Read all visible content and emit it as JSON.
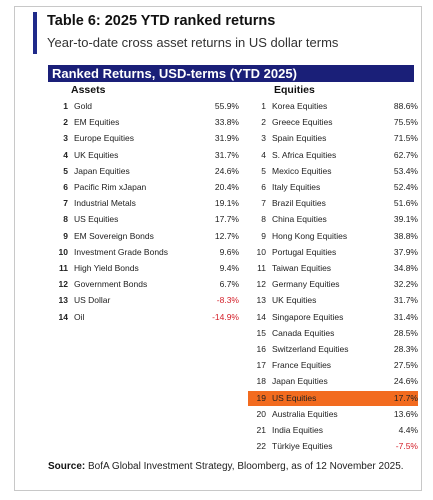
{
  "title": "Table 6: 2025 YTD ranked returns",
  "subtitle": "Year-to-date cross asset returns in US dollar terms",
  "banner": "Ranked Returns, USD-terms (YTD 2025)",
  "assets_header": "Assets",
  "equities_header": "Equities",
  "assets": [
    {
      "rank": "1",
      "name": "Gold",
      "value": "55.9%"
    },
    {
      "rank": "2",
      "name": "EM Equities",
      "value": "33.8%"
    },
    {
      "rank": "3",
      "name": "Europe Equities",
      "value": "31.9%"
    },
    {
      "rank": "4",
      "name": "UK Equities",
      "value": "31.7%"
    },
    {
      "rank": "5",
      "name": "Japan Equities",
      "value": "24.6%"
    },
    {
      "rank": "6",
      "name": "Pacific Rim xJapan",
      "value": "20.4%"
    },
    {
      "rank": "7",
      "name": "Industrial Metals",
      "value": "19.1%"
    },
    {
      "rank": "8",
      "name": "US Equities",
      "value": "17.7%"
    },
    {
      "rank": "9",
      "name": "EM Sovereign Bonds",
      "value": "12.7%"
    },
    {
      "rank": "10",
      "name": "Investment Grade Bonds",
      "value": "9.6%"
    },
    {
      "rank": "11",
      "name": "High Yield Bonds",
      "value": "9.4%"
    },
    {
      "rank": "12",
      "name": "Government Bonds",
      "value": "6.7%"
    },
    {
      "rank": "13",
      "name": "US Dollar",
      "value": "-8.3%"
    },
    {
      "rank": "14",
      "name": "Oil",
      "value": "-14.9%"
    }
  ],
  "equities": [
    {
      "rank": "1",
      "name": "Korea Equities",
      "value": "88.6%"
    },
    {
      "rank": "2",
      "name": "Greece Equities",
      "value": "75.5%"
    },
    {
      "rank": "3",
      "name": "Spain Equities",
      "value": "71.5%"
    },
    {
      "rank": "4",
      "name": "S. Africa Equities",
      "value": "62.7%"
    },
    {
      "rank": "5",
      "name": "Mexico Equities",
      "value": "53.4%"
    },
    {
      "rank": "6",
      "name": "Italy Equities",
      "value": "52.4%"
    },
    {
      "rank": "7",
      "name": "Brazil Equities",
      "value": "51.6%"
    },
    {
      "rank": "8",
      "name": "China Equities",
      "value": "39.1%"
    },
    {
      "rank": "9",
      "name": "Hong Kong Equities",
      "value": "38.8%"
    },
    {
      "rank": "10",
      "name": "Portugal Equities",
      "value": "37.9%"
    },
    {
      "rank": "11",
      "name": "Taiwan Equities",
      "value": "34.8%"
    },
    {
      "rank": "12",
      "name": "Germany Equities",
      "value": "32.2%"
    },
    {
      "rank": "13",
      "name": "UK Equities",
      "value": "31.7%"
    },
    {
      "rank": "14",
      "name": "Singapore Equities",
      "value": "31.4%"
    },
    {
      "rank": "15",
      "name": "Canada Equities",
      "value": "28.5%"
    },
    {
      "rank": "16",
      "name": "Switzerland Equities",
      "value": "28.3%"
    },
    {
      "rank": "17",
      "name": "France Equities",
      "value": "27.5%"
    },
    {
      "rank": "18",
      "name": "Japan Equities",
      "value": "24.6%"
    },
    {
      "rank": "19",
      "name": "US Equities",
      "value": "17.7%",
      "highlight": true
    },
    {
      "rank": "20",
      "name": "Australia Equities",
      "value": "13.6%"
    },
    {
      "rank": "21",
      "name": "India Equities",
      "value": "4.4%"
    },
    {
      "rank": "22",
      "name": "Türkiye Equities",
      "value": "-7.5%"
    }
  ],
  "source_label": "Source:",
  "source_text": " BofA Global Investment Strategy, Bloomberg, as of 12 November 2025.",
  "colors": {
    "banner": "#1a1f78",
    "accent": "#1f2a8a",
    "negative": "#d4202a",
    "highlight": "#f26b1f"
  }
}
